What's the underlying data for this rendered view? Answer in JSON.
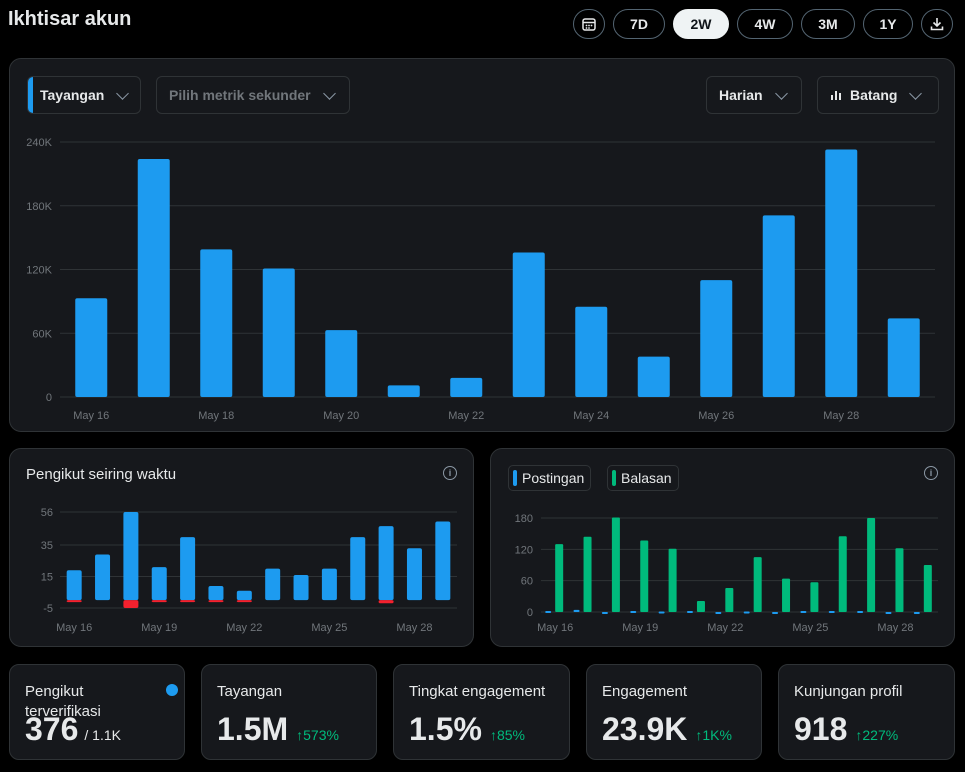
{
  "header": {
    "title": "Ikhtisar akun",
    "ranges": [
      "7D",
      "2W",
      "4W",
      "3M",
      "1Y"
    ],
    "active_range": "2W"
  },
  "main_chart": {
    "metric": "Tayangan",
    "secondary_placeholder": "Pilih metrik sekunder",
    "interval": "Harian",
    "chart_type_label": "Batang"
  },
  "followers_panel": {
    "title": "Pengikut seiring waktu"
  },
  "posts_panel": {
    "legend": [
      "Postingan",
      "Balasan"
    ]
  },
  "stats": [
    {
      "label": "Pengikut terverifikasi",
      "value": "376",
      "sub": "/ 1.1K",
      "delta": ""
    },
    {
      "label": "Tayangan",
      "value": "1.5M",
      "sub": "",
      "delta": "↑573%"
    },
    {
      "label": "Tingkat engagement",
      "value": "1.5%",
      "sub": "",
      "delta": "↑85%"
    },
    {
      "label": "Engagement",
      "value": "23.9K",
      "sub": "",
      "delta": "↑1K%"
    },
    {
      "label": "Kunjungan profil",
      "value": "918",
      "sub": "",
      "delta": "↑227%"
    }
  ],
  "colors": {
    "blue": "#1d9bf0",
    "green": "#00ba7c",
    "red": "#f4212e"
  },
  "chart_data": [
    {
      "type": "bar",
      "categories": [
        "May 16",
        "May 17",
        "May 18",
        "May 19",
        "May 20",
        "May 21",
        "May 22",
        "May 23",
        "May 24",
        "May 25",
        "May 26",
        "May 27",
        "May 28",
        "May 29"
      ],
      "tick_labels": [
        "May 16",
        "May 18",
        "May 20",
        "May 22",
        "May 24",
        "May 26",
        "May 28"
      ],
      "ytick_labels": [
        "0",
        "60K",
        "120K",
        "180K",
        "240K"
      ],
      "series": [
        {
          "values": [
            93000,
            224000,
            139000,
            121000,
            63000,
            11000,
            18000,
            136000,
            85000,
            38000,
            110000,
            171000,
            233000,
            74000
          ]
        }
      ],
      "ylim": [
        0,
        240000
      ]
    },
    {
      "type": "bar",
      "title": "Pengikut seiring waktu",
      "categories": [
        "May 16",
        "May 17",
        "May 18",
        "May 19",
        "May 20",
        "May 21",
        "May 22",
        "May 23",
        "May 24",
        "May 25",
        "May 26",
        "May 27",
        "May 28",
        "May 29"
      ],
      "tick_labels": [
        "May 16",
        "May 19",
        "May 22",
        "May 25",
        "May 28"
      ],
      "ytick_labels": [
        "-5",
        "15",
        "35",
        "56"
      ],
      "series": [
        {
          "values": [
            19,
            29,
            56,
            21,
            40,
            9,
            6,
            20,
            16,
            20,
            40,
            47,
            33,
            50
          ]
        },
        {
          "values": [
            -1,
            0,
            -5,
            -1,
            -1,
            -1,
            -1,
            0,
            0,
            0,
            0,
            -2,
            0,
            0
          ]
        }
      ],
      "ylim": [
        -5,
        56
      ]
    },
    {
      "type": "bar",
      "categories": [
        "May 16",
        "May 17",
        "May 18",
        "May 19",
        "May 20",
        "May 21",
        "May 22",
        "May 23",
        "May 24",
        "May 25",
        "May 26",
        "May 27",
        "May 28",
        "May 29"
      ],
      "tick_labels": [
        "May 16",
        "May 19",
        "May 22",
        "May 25",
        "May 28"
      ],
      "ytick_labels": [
        "0",
        "60",
        "120",
        "180"
      ],
      "series": [
        {
          "name": "Postingan",
          "values": [
            2,
            4,
            0,
            2,
            1,
            2,
            0,
            1,
            0,
            2,
            2,
            2,
            0,
            0
          ]
        },
        {
          "name": "Balasan",
          "values": [
            130,
            144,
            181,
            137,
            121,
            21,
            46,
            105,
            64,
            57,
            145,
            180,
            122,
            90
          ]
        }
      ],
      "ylim": [
        0,
        180
      ]
    }
  ]
}
